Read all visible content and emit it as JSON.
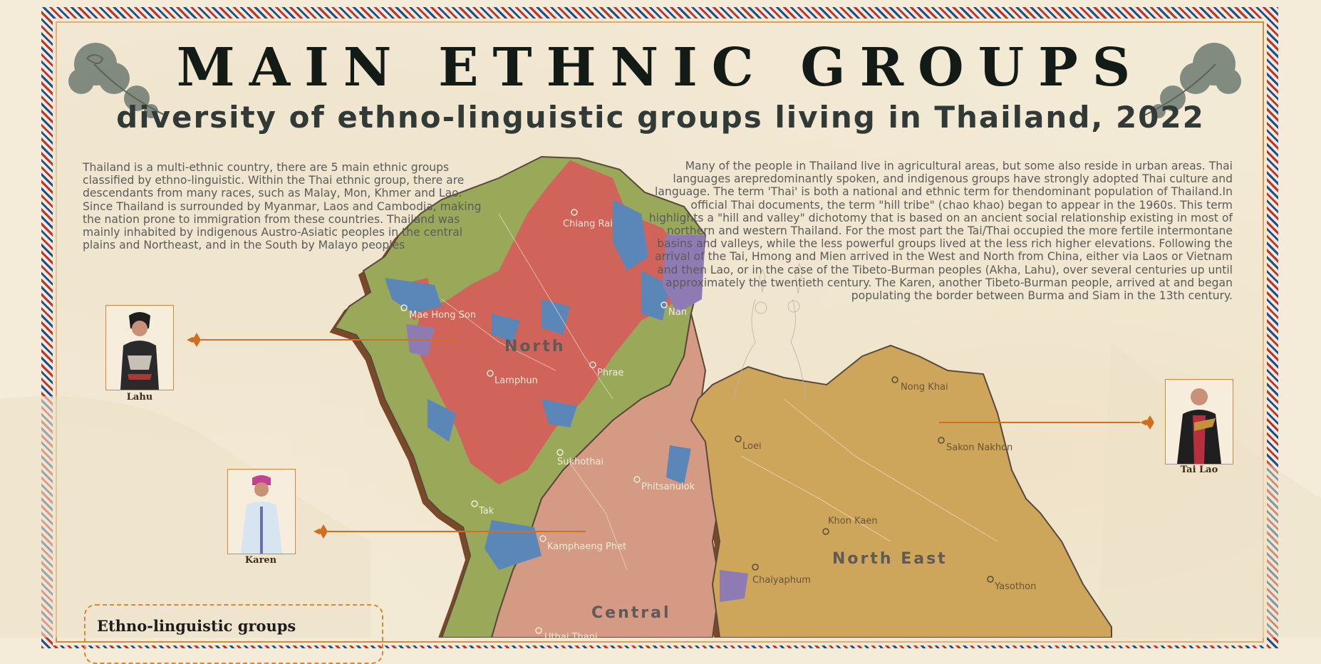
{
  "header": {
    "title": "MAIN ETHNIC GROUPS",
    "subtitle": "diversity of ethno-linguistic groups living in Thailand, 2022"
  },
  "intro_left": "Thailand is a multi-ethnic country, there are 5 main ethnic groups classified by ethno-linguistic. Within the Thai ethnic group, there are descendants from many races, such as Malay, Mon, Khmer and Lao. Since Thailand is surrounded by Myanmar, Laos and Cambodia, making the nation prone to immigration from these countries. Thailand was mainly inhabited by indigenous Austro-Asiatic peoples in the central plains and Northeast, and in the South by Malayo peoples",
  "intro_right": "Many of the people in Thailand live in agricultural areas, but some also reside in urban areas. Thai languages arepredominantly spoken, and indigenous groups  have strongly adopted Thai culture and language. The term 'Thai' is both a national and ethnic term for thendominant population of Thailand.In official Thai documents, the term \"hill tribe\" (chao khao) began to appear in the 1960s. This term highlights a \"hill and valley\" dichotomy that is based on an ancient social relationship existing in most of northern and western Thailand. For the most part the Tai/Thai occupied the more fertile intermontane basins and valleys, while the less powerful groups lived at the less rich higher elevations. Following the arrival of the Tai, Hmong and Mien arrived in the West and North from China, either via Laos or Vietnam and then Lao, or in the case of the Tibeto-Burman peoples (Akha, Lahu), over several centuries up until approximately the twentieth century. The Karen, another Tibeto-Burman people, arrived at and began populating the border between Burma and Siam in the 13th century.",
  "regions": {
    "north": "North",
    "north_east": "North East",
    "central": "Central"
  },
  "cities": {
    "chiang_rai": "Chiang Rai",
    "mae_hong_son": "Mae Hong Son",
    "nan": "Nan",
    "lamphun": "Lamphun",
    "phrae": "Phrae",
    "sukhothai": "Sukhothai",
    "phitsanulok": "Phitsanulok",
    "tak": "Tak",
    "kamphaeng_phet": "Kamphaeng Phet",
    "uthai_thani": "Uthai Thani",
    "nong_khai": "Nong Khai",
    "loei": "Loei",
    "sakon_nakhon": "Sakon Nakhon",
    "khon_kaen": "Khon Kaen",
    "chaiyaphum": "Chaiyaphum",
    "yasothon": "Yasothon"
  },
  "portraits": {
    "lahu": "Lahu",
    "karen": "Karen",
    "tai_lao": "Tai Lao"
  },
  "legend": {
    "title": "Ethno-linguistic groups"
  },
  "colors": {
    "background": "#f3ead6",
    "green_group": "#9aa85a",
    "red_group": "#d1645a",
    "blue_group": "#5b86b8",
    "purple_group": "#8f7bb4",
    "central_salmon": "#d49a84",
    "northeast_gold": "#cda65c",
    "accent_orange": "#d06f1f",
    "title": "#131b17"
  }
}
